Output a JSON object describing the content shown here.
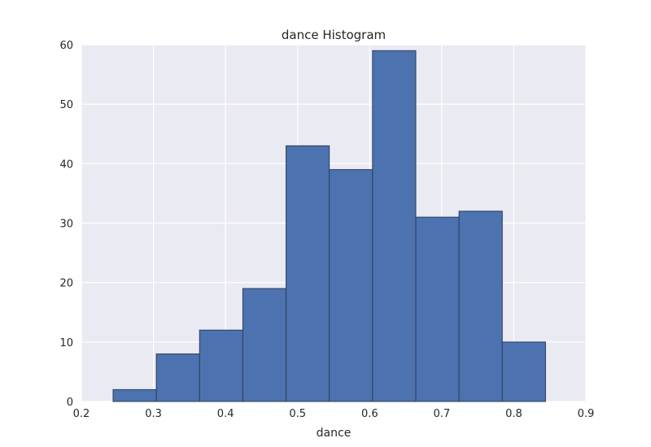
{
  "chart_data": {
    "type": "bar",
    "title": "dance Histogram",
    "xlabel": "dance",
    "ylabel": "",
    "xlim": [
      0.2,
      0.9
    ],
    "ylim": [
      0,
      60
    ],
    "xticks": [
      "0.2",
      "0.3",
      "0.4",
      "0.5",
      "0.6",
      "0.7",
      "0.8",
      "0.9"
    ],
    "yticks": [
      "0",
      "10",
      "20",
      "30",
      "40",
      "50",
      "60"
    ],
    "grid": true,
    "bar_color": "#4c72b0",
    "edge_color": "#2d3f5c",
    "background_color": "#eaeaf2",
    "bins": [
      {
        "x0": 0.244,
        "x1": 0.304,
        "count": 2
      },
      {
        "x0": 0.304,
        "x1": 0.364,
        "count": 8
      },
      {
        "x0": 0.364,
        "x1": 0.424,
        "count": 12
      },
      {
        "x0": 0.424,
        "x1": 0.484,
        "count": 19
      },
      {
        "x0": 0.484,
        "x1": 0.544,
        "count": 43
      },
      {
        "x0": 0.544,
        "x1": 0.604,
        "count": 39
      },
      {
        "x0": 0.604,
        "x1": 0.664,
        "count": 59
      },
      {
        "x0": 0.664,
        "x1": 0.724,
        "count": 31
      },
      {
        "x0": 0.724,
        "x1": 0.784,
        "count": 32
      },
      {
        "x0": 0.784,
        "x1": 0.844,
        "count": 10
      }
    ]
  }
}
